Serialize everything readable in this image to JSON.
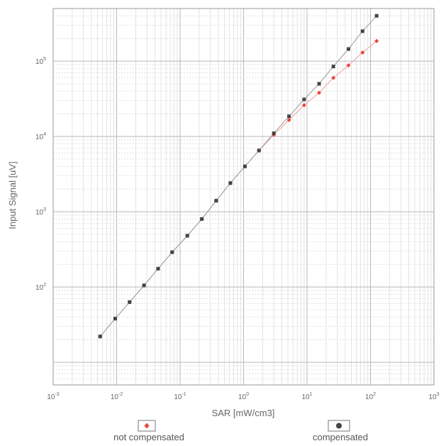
{
  "chart_data": {
    "type": "scatter",
    "x_scale": "log",
    "y_scale": "log",
    "xlim": [
      0.001,
      1000
    ],
    "ylim": [
      5,
      500000
    ],
    "grid": true,
    "xlabel": "SAR [mW/cm3]",
    "ylabel": "Input Signal [uV]",
    "x_ticks": [
      {
        "value": 0.001,
        "base": "10",
        "exp": "-3"
      },
      {
        "value": 0.01,
        "base": "10",
        "exp": "-2"
      },
      {
        "value": 0.1,
        "base": "10",
        "exp": "-1"
      },
      {
        "value": 1,
        "base": "10",
        "exp": "0"
      },
      {
        "value": 10,
        "base": "10",
        "exp": "1"
      },
      {
        "value": 100,
        "base": "10",
        "exp": "2"
      },
      {
        "value": 1000,
        "base": "10",
        "exp": "3"
      }
    ],
    "y_ticks": [
      {
        "value": 100,
        "base": "10",
        "exp": "2"
      },
      {
        "value": 1000,
        "base": "10",
        "exp": "3"
      },
      {
        "value": 10000,
        "base": "10",
        "exp": "4"
      },
      {
        "value": 100000,
        "base": "10",
        "exp": "5"
      }
    ],
    "legend_position": "bottom",
    "series": [
      {
        "name": "not compensated",
        "color": "#e8463a",
        "marker": "diamond",
        "x": [
          0.0055,
          0.0095,
          0.016,
          0.027,
          0.045,
          0.075,
          0.13,
          0.22,
          0.37,
          0.62,
          1.05,
          1.75,
          3.0,
          5.2,
          9.0,
          15.5,
          26,
          45,
          75,
          125
        ],
        "y": [
          22,
          38,
          63,
          105,
          175,
          290,
          480,
          800,
          1400,
          2400,
          4000,
          6500,
          10500,
          16500,
          26000,
          38000,
          60000,
          88000,
          130000,
          185000
        ]
      },
      {
        "name": "compensated",
        "color": "#444444",
        "marker": "square",
        "x": [
          0.0055,
          0.0095,
          0.016,
          0.027,
          0.045,
          0.075,
          0.13,
          0.22,
          0.37,
          0.62,
          1.05,
          1.75,
          3.0,
          5.2,
          9.0,
          15.5,
          26,
          45,
          75,
          125
        ],
        "y": [
          22,
          38,
          63,
          105,
          175,
          290,
          480,
          800,
          1400,
          2400,
          4000,
          6500,
          11000,
          18500,
          31000,
          50000,
          85000,
          145000,
          250000,
          400000
        ]
      }
    ]
  },
  "legend": {
    "not_compensated_label": "not compensated",
    "compensated_label": "compensated"
  }
}
